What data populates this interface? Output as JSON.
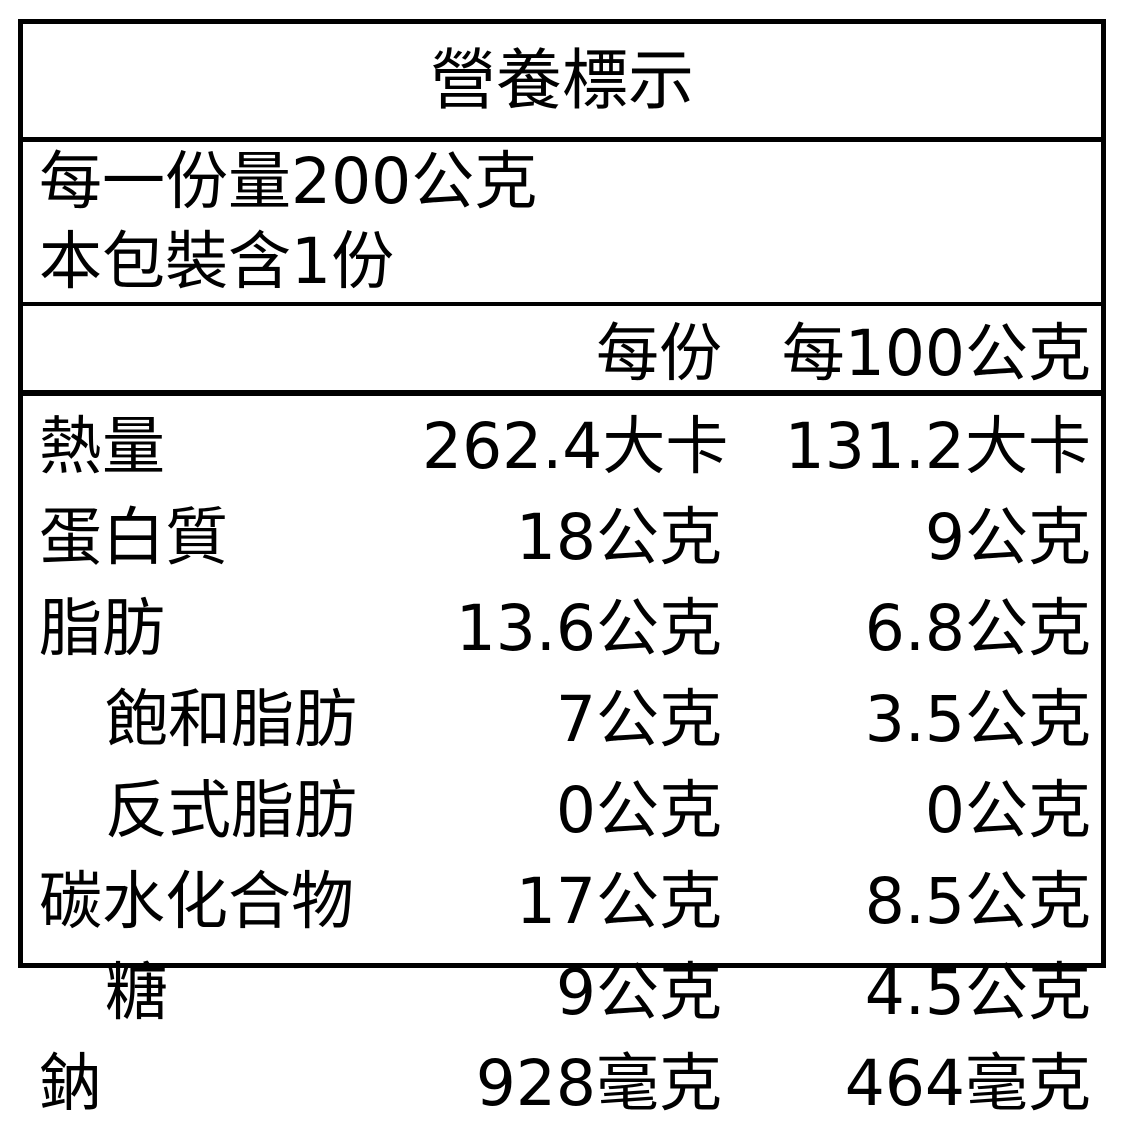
{
  "nutrition": {
    "title": "營養標示",
    "serving_size_line": "每一份量200公克",
    "servings_per_package_line": "本包裝含1份",
    "columns": {
      "per_serving": "每份",
      "per_100g": "每100公克"
    },
    "rows": [
      {
        "name": "熱量",
        "indent": false,
        "per_serving": "262.4大卡",
        "per_100g": "131.2大卡"
      },
      {
        "name": "蛋白質",
        "indent": false,
        "per_serving": "18公克",
        "per_100g": "9公克"
      },
      {
        "name": "脂肪",
        "indent": false,
        "per_serving": "13.6公克",
        "per_100g": "6.8公克"
      },
      {
        "name": "飽和脂肪",
        "indent": true,
        "per_serving": "7公克",
        "per_100g": "3.5公克"
      },
      {
        "name": "反式脂肪",
        "indent": true,
        "per_serving": "0公克",
        "per_100g": "0公克"
      },
      {
        "name": "碳水化合物",
        "indent": false,
        "per_serving": "17公克",
        "per_100g": "8.5公克"
      },
      {
        "name": "糖",
        "indent": true,
        "per_serving": "9公克",
        "per_100g": "4.5公克"
      },
      {
        "name": "鈉",
        "indent": false,
        "per_serving": "928毫克",
        "per_100g": "464毫克"
      }
    ],
    "colors": {
      "text": "#000000",
      "background": "#ffffff",
      "border": "#000000"
    }
  }
}
